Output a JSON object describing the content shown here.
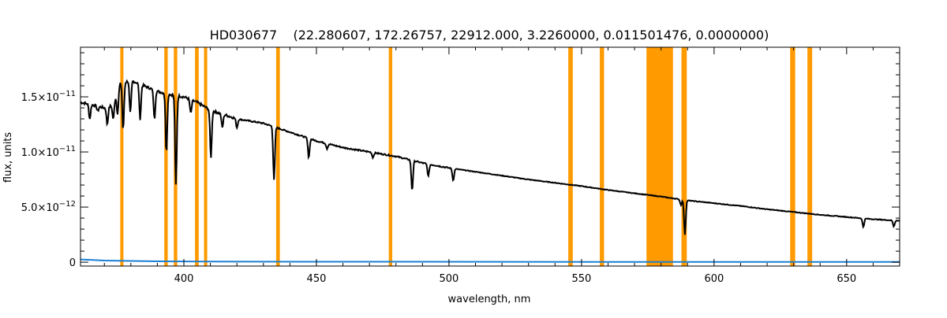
{
  "chart_data": {
    "type": "line",
    "title": "HD030677    (22.280607, 172.26757, 22912.000, 3.2260000, 0.011501476, 0.0000000)",
    "xlabel": "wavelength, nm",
    "ylabel": "flux, units",
    "xlim": [
      361,
      670
    ],
    "ylim": [
      -3.5e-13,
      1.95e-11
    ],
    "x_ticks": [
      400,
      450,
      500,
      550,
      600,
      650
    ],
    "x_tick_labels": [
      "400",
      "450",
      "500",
      "550",
      "600",
      "650"
    ],
    "y_ticks": [
      0,
      5e-12,
      1e-11,
      1.5e-11
    ],
    "y_tick_labels": [
      {
        "mant": "0",
        "exp": ""
      },
      {
        "mant": "5.0×10",
        "exp": "−12"
      },
      {
        "mant": "1.0×10",
        "exp": "−11"
      },
      {
        "mant": "1.5×10",
        "exp": "−11"
      }
    ],
    "grid": false,
    "masked_bands_nm": [
      [
        376.0,
        377.2
      ],
      [
        392.6,
        393.9
      ],
      [
        396.2,
        397.5
      ],
      [
        404.2,
        405.6
      ],
      [
        407.6,
        408.8
      ],
      [
        434.8,
        436.2
      ],
      [
        477.3,
        478.6
      ],
      [
        545.0,
        546.7
      ],
      [
        556.9,
        558.5
      ],
      [
        574.5,
        584.5
      ],
      [
        587.7,
        589.7
      ],
      [
        628.7,
        630.6
      ],
      [
        635.2,
        637.0
      ]
    ],
    "series": [
      {
        "color": "#000000",
        "continuum": [
          [
            361,
            1.45e-11
          ],
          [
            365,
            1.43e-11
          ],
          [
            370,
            1.4e-11
          ],
          [
            373,
            1.42e-11
          ],
          [
            376,
            1.62e-11
          ],
          [
            380,
            1.65e-11
          ],
          [
            385,
            1.6e-11
          ],
          [
            390,
            1.55e-11
          ],
          [
            395,
            1.52e-11
          ],
          [
            400,
            1.5e-11
          ],
          [
            405,
            1.45e-11
          ],
          [
            410,
            1.38e-11
          ],
          [
            420,
            1.3e-11
          ],
          [
            430,
            1.26e-11
          ],
          [
            440,
            1.18e-11
          ],
          [
            450,
            1.1e-11
          ],
          [
            460,
            1.04e-11
          ],
          [
            470,
            1e-11
          ],
          [
            480,
            9.6e-12
          ],
          [
            490,
            9e-12
          ],
          [
            500,
            8.55e-12
          ],
          [
            510,
            8.2e-12
          ],
          [
            520,
            7.85e-12
          ],
          [
            530,
            7.5e-12
          ],
          [
            540,
            7.2e-12
          ],
          [
            550,
            6.9e-12
          ],
          [
            560,
            6.55e-12
          ],
          [
            570,
            6.25e-12
          ],
          [
            580,
            5.95e-12
          ],
          [
            590,
            5.6e-12
          ],
          [
            600,
            5.35e-12
          ],
          [
            610,
            5.1e-12
          ],
          [
            620,
            4.8e-12
          ],
          [
            630,
            4.55e-12
          ],
          [
            640,
            4.3e-12
          ],
          [
            650,
            4.1e-12
          ],
          [
            660,
            3.9e-12
          ],
          [
            670,
            3.75e-12
          ]
        ],
        "absorption_lines": [
          [
            364.5,
            1.3e-11
          ],
          [
            367.5,
            1.37e-11
          ],
          [
            371.1,
            1.25e-11
          ],
          [
            373.4,
            1.3e-11
          ],
          [
            375.0,
            1.35e-11
          ],
          [
            377.1,
            1.2e-11
          ],
          [
            379.8,
            1.35e-11
          ],
          [
            383.5,
            1.3e-11
          ],
          [
            388.9,
            1.3e-11
          ],
          [
            393.4,
            1e-11
          ],
          [
            397.0,
            7e-12
          ],
          [
            402.6,
            1.35e-11
          ],
          [
            410.2,
            9.5e-12
          ],
          [
            414.5,
            1.22e-11
          ],
          [
            420.0,
            1.22e-11
          ],
          [
            434.0,
            7.5e-12
          ],
          [
            447.1,
            9.5e-12
          ],
          [
            454.0,
            1.03e-11
          ],
          [
            471.3,
            9.5e-12
          ],
          [
            486.1,
            6.5e-12
          ],
          [
            492.2,
            7.8e-12
          ],
          [
            501.6,
            7.4e-12
          ],
          [
            587.5,
            5.2e-12
          ],
          [
            589.0,
            2.5e-12
          ],
          [
            656.3,
            3.2e-12
          ],
          [
            667.8,
            3.25e-12
          ]
        ]
      },
      {
        "color": "#1a7fd4",
        "values": [
          [
            361,
            2.5e-13
          ],
          [
            370,
            1.5e-13
          ],
          [
            390,
            8e-14
          ],
          [
            420,
            5e-14
          ],
          [
            470,
            4e-14
          ],
          [
            560,
            3e-14
          ],
          [
            670,
            2.5e-14
          ]
        ]
      }
    ]
  }
}
